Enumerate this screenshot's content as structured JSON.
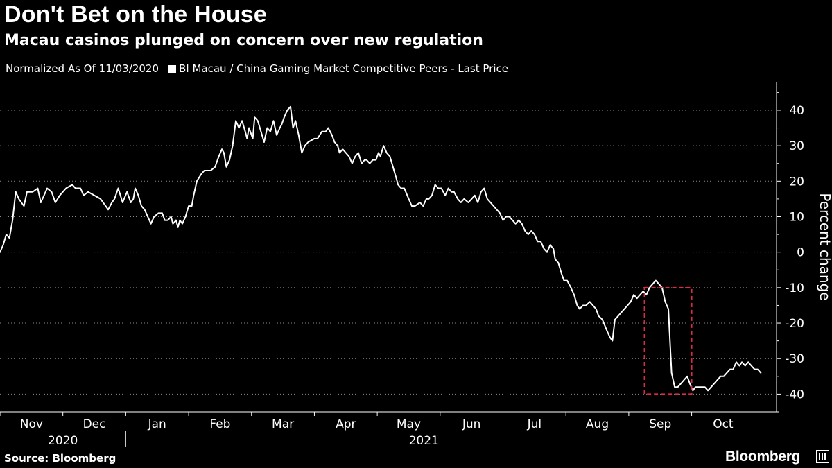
{
  "header": {
    "title": "Don't Bet on the House",
    "subtitle": "Macau casinos plunged on concern over new regulation"
  },
  "legend": {
    "normalized": "Normalized As Of 11/03/2020",
    "series_label": "BI Macau / China Gaming Market Competitive Peers - Last Price"
  },
  "footer": {
    "source": "Source: Bloomberg",
    "brand": "Bloomberg"
  },
  "colors": {
    "background": "#000000",
    "line": "#ffffff",
    "highlight": "#e0284b"
  },
  "chart_data": {
    "type": "line",
    "title": "Don't Bet on the House",
    "subtitle": "Macau casinos plunged on concern over new regulation",
    "ylabel": "Percent change",
    "ylim": [
      -45,
      48
    ],
    "yticks": [
      -40,
      -30,
      -20,
      -10,
      0,
      10,
      20,
      30,
      40
    ],
    "xlim": [
      0,
      12.35
    ],
    "months": [
      "Nov",
      "Dec",
      "Jan",
      "Feb",
      "Mar",
      "Apr",
      "May",
      "Jun",
      "Jul",
      "Aug",
      "Sep",
      "Oct"
    ],
    "years": [
      {
        "label": "2020",
        "start": 0,
        "end": 2
      },
      {
        "label": "2021",
        "start": 2,
        "end": 12.35
      }
    ],
    "highlight_box": {
      "x_start": 10.25,
      "x_end": 11.0,
      "y_low": -40,
      "y_high": -10
    },
    "series": [
      {
        "name": "BI Macau / China Gaming Market Competitive Peers - Last Price",
        "points": [
          [
            0.0,
            0
          ],
          [
            0.05,
            2
          ],
          [
            0.1,
            5
          ],
          [
            0.15,
            4
          ],
          [
            0.2,
            9
          ],
          [
            0.25,
            17
          ],
          [
            0.3,
            15
          ],
          [
            0.38,
            13
          ],
          [
            0.43,
            17
          ],
          [
            0.52,
            17
          ],
          [
            0.6,
            18
          ],
          [
            0.65,
            14
          ],
          [
            0.7,
            16
          ],
          [
            0.75,
            18
          ],
          [
            0.82,
            17
          ],
          [
            0.88,
            14
          ],
          [
            0.95,
            16
          ],
          [
            1.05,
            18
          ],
          [
            1.15,
            19
          ],
          [
            1.2,
            18
          ],
          [
            1.28,
            18
          ],
          [
            1.33,
            16
          ],
          [
            1.4,
            17
          ],
          [
            1.5,
            16
          ],
          [
            1.6,
            15
          ],
          [
            1.68,
            13
          ],
          [
            1.72,
            12
          ],
          [
            1.78,
            14
          ],
          [
            1.82,
            15
          ],
          [
            1.88,
            18
          ],
          [
            1.95,
            14
          ],
          [
            2.02,
            17
          ],
          [
            2.08,
            14
          ],
          [
            2.12,
            15
          ],
          [
            2.15,
            18
          ],
          [
            2.2,
            16
          ],
          [
            2.25,
            13
          ],
          [
            2.3,
            12
          ],
          [
            2.35,
            10
          ],
          [
            2.4,
            8
          ],
          [
            2.45,
            10
          ],
          [
            2.52,
            11
          ],
          [
            2.58,
            11
          ],
          [
            2.62,
            9
          ],
          [
            2.67,
            9
          ],
          [
            2.72,
            10
          ],
          [
            2.75,
            8
          ],
          [
            2.8,
            9
          ],
          [
            2.83,
            7
          ],
          [
            2.86,
            9
          ],
          [
            2.9,
            8
          ],
          [
            2.95,
            10
          ],
          [
            3.0,
            13
          ],
          [
            3.05,
            13
          ],
          [
            3.08,
            16
          ],
          [
            3.13,
            20
          ],
          [
            3.2,
            22
          ],
          [
            3.25,
            23
          ],
          [
            3.35,
            23
          ],
          [
            3.42,
            24
          ],
          [
            3.48,
            27
          ],
          [
            3.53,
            29
          ],
          [
            3.56,
            28
          ],
          [
            3.6,
            24
          ],
          [
            3.65,
            26
          ],
          [
            3.7,
            30
          ],
          [
            3.75,
            37
          ],
          [
            3.8,
            35
          ],
          [
            3.85,
            37
          ],
          [
            3.9,
            34
          ],
          [
            3.93,
            32
          ],
          [
            3.96,
            35
          ],
          [
            4.02,
            32
          ],
          [
            4.05,
            38
          ],
          [
            4.1,
            37
          ],
          [
            4.15,
            34
          ],
          [
            4.2,
            31
          ],
          [
            4.25,
            35
          ],
          [
            4.3,
            34
          ],
          [
            4.35,
            37
          ],
          [
            4.4,
            33
          ],
          [
            4.45,
            35
          ],
          [
            4.48,
            36
          ],
          [
            4.52,
            38
          ],
          [
            4.57,
            40
          ],
          [
            4.62,
            41
          ],
          [
            4.66,
            35
          ],
          [
            4.7,
            37
          ],
          [
            4.75,
            33
          ],
          [
            4.8,
            28
          ],
          [
            4.85,
            30
          ],
          [
            4.9,
            31
          ],
          [
            5.0,
            32
          ],
          [
            5.05,
            32
          ],
          [
            5.12,
            34
          ],
          [
            5.18,
            34
          ],
          [
            5.22,
            35
          ],
          [
            5.28,
            33
          ],
          [
            5.32,
            31
          ],
          [
            5.37,
            30
          ],
          [
            5.4,
            28
          ],
          [
            5.45,
            29
          ],
          [
            5.5,
            28
          ],
          [
            5.55,
            27
          ],
          [
            5.6,
            25
          ],
          [
            5.65,
            27
          ],
          [
            5.7,
            28
          ],
          [
            5.75,
            25
          ],
          [
            5.8,
            26
          ],
          [
            5.83,
            26
          ],
          [
            5.88,
            25
          ],
          [
            5.93,
            26
          ],
          [
            5.98,
            26
          ],
          [
            6.02,
            28
          ],
          [
            6.05,
            27
          ],
          [
            6.1,
            30
          ],
          [
            6.15,
            28
          ],
          [
            6.2,
            27
          ],
          [
            6.25,
            24
          ],
          [
            6.3,
            21
          ],
          [
            6.33,
            19
          ],
          [
            6.38,
            18
          ],
          [
            6.43,
            18
          ],
          [
            6.5,
            15
          ],
          [
            6.55,
            13
          ],
          [
            6.6,
            13
          ],
          [
            6.68,
            14
          ],
          [
            6.73,
            13
          ],
          [
            6.78,
            15
          ],
          [
            6.82,
            15
          ],
          [
            6.87,
            16
          ],
          [
            6.92,
            19
          ],
          [
            6.97,
            18
          ],
          [
            7.02,
            18
          ],
          [
            7.08,
            16
          ],
          [
            7.13,
            18
          ],
          [
            7.18,
            17
          ],
          [
            7.22,
            17
          ],
          [
            7.28,
            15
          ],
          [
            7.33,
            14
          ],
          [
            7.38,
            15
          ],
          [
            7.45,
            14
          ],
          [
            7.5,
            15
          ],
          [
            7.55,
            16
          ],
          [
            7.6,
            14
          ],
          [
            7.65,
            17
          ],
          [
            7.7,
            18
          ],
          [
            7.75,
            15
          ],
          [
            7.8,
            14
          ],
          [
            7.85,
            13
          ],
          [
            7.9,
            12
          ],
          [
            7.95,
            11
          ],
          [
            8.0,
            9
          ],
          [
            8.05,
            10
          ],
          [
            8.1,
            10
          ],
          [
            8.15,
            9
          ],
          [
            8.2,
            8
          ],
          [
            8.25,
            9
          ],
          [
            8.3,
            8
          ],
          [
            8.35,
            6
          ],
          [
            8.4,
            5
          ],
          [
            8.45,
            6
          ],
          [
            8.5,
            5
          ],
          [
            8.55,
            3
          ],
          [
            8.6,
            3
          ],
          [
            8.65,
            1
          ],
          [
            8.7,
            0
          ],
          [
            8.75,
            2
          ],
          [
            8.8,
            1
          ],
          [
            8.83,
            -2
          ],
          [
            8.88,
            -3
          ],
          [
            8.93,
            -6
          ],
          [
            8.97,
            -8
          ],
          [
            9.02,
            -8
          ],
          [
            9.08,
            -10
          ],
          [
            9.13,
            -12
          ],
          [
            9.18,
            -15
          ],
          [
            9.22,
            -16
          ],
          [
            9.27,
            -15
          ],
          [
            9.32,
            -15
          ],
          [
            9.38,
            -14
          ],
          [
            9.43,
            -15
          ],
          [
            9.48,
            -16
          ],
          [
            9.52,
            -18
          ],
          [
            9.58,
            -19
          ],
          [
            9.65,
            -22
          ],
          [
            9.7,
            -24
          ],
          [
            9.74,
            -25
          ],
          [
            9.78,
            -19
          ],
          [
            9.83,
            -18
          ],
          [
            9.88,
            -17
          ],
          [
            9.93,
            -16
          ],
          [
            9.98,
            -15
          ],
          [
            10.03,
            -14
          ],
          [
            10.08,
            -12
          ],
          [
            10.13,
            -13
          ],
          [
            10.18,
            -12
          ],
          [
            10.23,
            -11
          ],
          [
            10.28,
            -12
          ],
          [
            10.33,
            -10
          ],
          [
            10.38,
            -9
          ],
          [
            10.43,
            -8
          ],
          [
            10.48,
            -9
          ],
          [
            10.53,
            -10
          ],
          [
            10.58,
            -14
          ],
          [
            10.63,
            -16
          ],
          [
            10.68,
            -34
          ],
          [
            10.73,
            -38
          ],
          [
            10.78,
            -38
          ],
          [
            10.83,
            -37
          ],
          [
            10.88,
            -36
          ],
          [
            10.93,
            -35
          ],
          [
            10.97,
            -37
          ],
          [
            11.02,
            -39
          ],
          [
            11.06,
            -38
          ],
          [
            11.11,
            -38
          ],
          [
            11.16,
            -38
          ],
          [
            11.21,
            -38
          ],
          [
            11.26,
            -39
          ],
          [
            11.31,
            -38
          ],
          [
            11.36,
            -37
          ],
          [
            11.41,
            -36
          ],
          [
            11.46,
            -35
          ],
          [
            11.51,
            -35
          ],
          [
            11.56,
            -34
          ],
          [
            11.61,
            -33
          ],
          [
            11.66,
            -33
          ],
          [
            11.71,
            -31
          ],
          [
            11.76,
            -32
          ],
          [
            11.8,
            -31
          ],
          [
            11.85,
            -32
          ],
          [
            11.9,
            -31
          ],
          [
            11.95,
            -32
          ],
          [
            12.0,
            -33
          ],
          [
            12.05,
            -33
          ],
          [
            12.1,
            -34
          ]
        ]
      }
    ]
  }
}
